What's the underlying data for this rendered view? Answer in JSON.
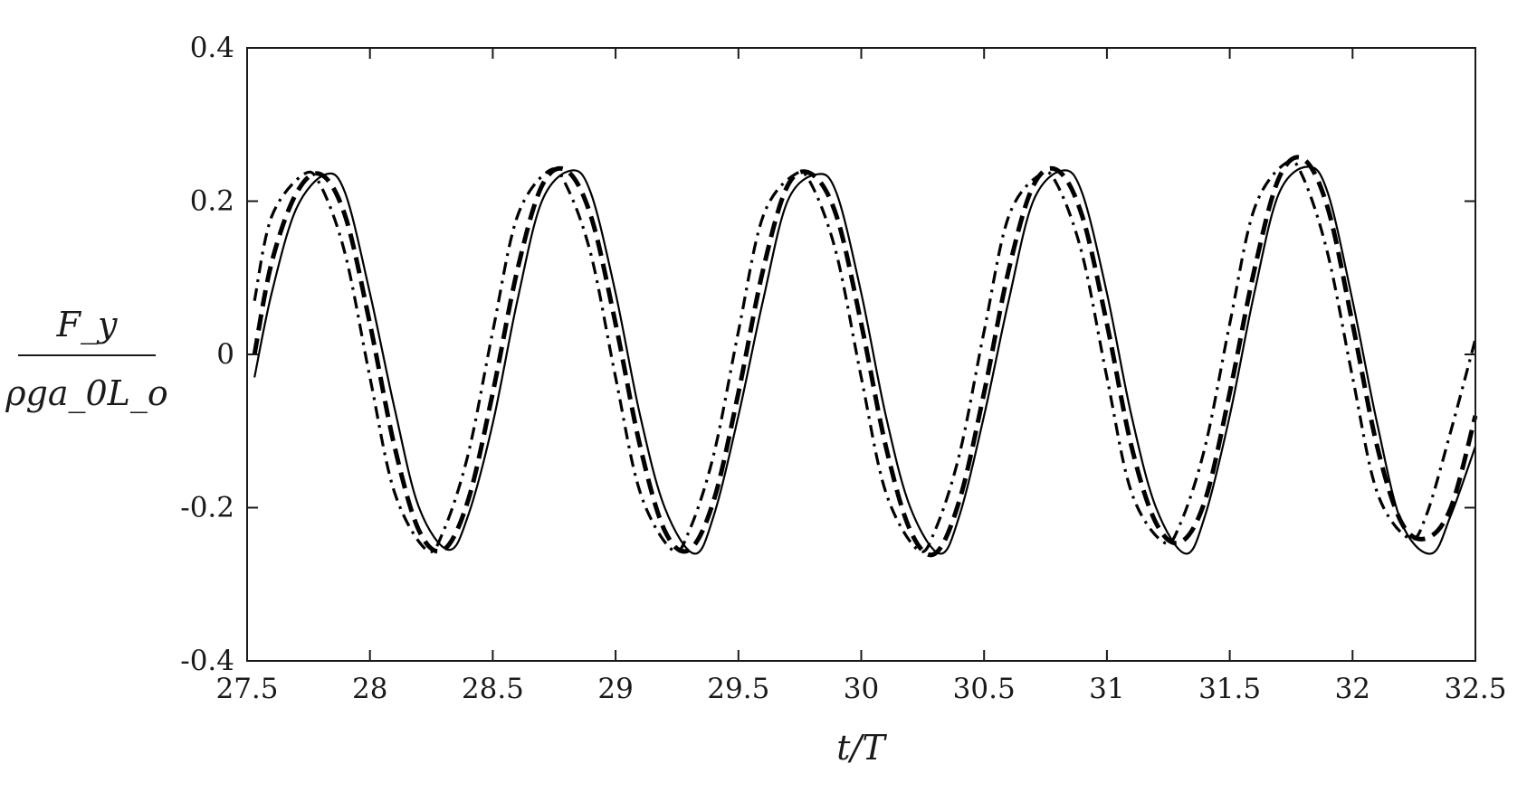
{
  "chart_data": {
    "type": "line",
    "title": "",
    "xlabel": "t/T",
    "ylabel_numerator": "F_y",
    "ylabel_denominator": "ρga_0L_o",
    "xlim": [
      27.5,
      32.5
    ],
    "ylim": [
      -0.4,
      0.4
    ],
    "xticks": [
      27.5,
      28,
      28.5,
      29,
      29.5,
      30,
      30.5,
      31,
      31.5,
      32,
      32.5
    ],
    "xtick_labels": [
      "27.5",
      "28",
      "28.5",
      "29",
      "29.5",
      "30",
      "30.5",
      "31",
      "31.5",
      "32",
      "32.5"
    ],
    "yticks": [
      -0.4,
      -0.2,
      0,
      0.2,
      0.4
    ],
    "ytick_labels": [
      "-0.4",
      "-0.2",
      "0",
      "0.2",
      "0.4"
    ],
    "grid": false,
    "line_color": "#000000",
    "series": [
      {
        "style": "solid",
        "x": [
          27.53,
          27.6,
          27.7,
          27.82,
          27.9,
          28.0,
          28.1,
          28.2,
          28.32,
          28.4,
          28.5,
          28.6,
          28.7,
          28.82,
          28.9,
          29.0,
          29.1,
          29.2,
          29.32,
          29.4,
          29.5,
          29.6,
          29.7,
          29.82,
          29.9,
          30.0,
          30.1,
          30.2,
          30.32,
          30.4,
          30.5,
          30.6,
          30.7,
          30.82,
          30.9,
          31.0,
          31.1,
          31.2,
          31.32,
          31.4,
          31.5,
          31.6,
          31.7,
          31.82,
          31.9,
          32.0,
          32.1,
          32.2,
          32.32,
          32.4,
          32.5
        ],
        "y": [
          -0.03,
          0.08,
          0.19,
          0.235,
          0.21,
          0.08,
          -0.07,
          -0.2,
          -0.255,
          -0.21,
          -0.09,
          0.07,
          0.2,
          0.24,
          0.21,
          0.08,
          -0.08,
          -0.2,
          -0.26,
          -0.21,
          -0.08,
          0.07,
          0.2,
          0.235,
          0.21,
          0.08,
          -0.08,
          -0.2,
          -0.26,
          -0.21,
          -0.08,
          0.07,
          0.2,
          0.24,
          0.21,
          0.08,
          -0.08,
          -0.2,
          -0.26,
          -0.21,
          -0.08,
          0.08,
          0.21,
          0.245,
          0.21,
          0.07,
          -0.09,
          -0.22,
          -0.26,
          -0.21,
          -0.12
        ]
      },
      {
        "style": "dashed",
        "x": [
          27.53,
          27.6,
          27.7,
          27.8,
          27.9,
          28.0,
          28.1,
          28.2,
          28.3,
          28.4,
          28.5,
          28.6,
          28.7,
          28.8,
          28.9,
          29.0,
          29.1,
          29.2,
          29.3,
          29.4,
          29.5,
          29.6,
          29.7,
          29.8,
          29.9,
          30.0,
          30.1,
          30.2,
          30.3,
          30.4,
          30.5,
          30.6,
          30.7,
          30.8,
          30.9,
          31.0,
          31.1,
          31.2,
          31.3,
          31.4,
          31.5,
          31.6,
          31.7,
          31.8,
          31.9,
          32.0,
          32.1,
          32.2,
          32.3,
          32.4,
          32.5
        ],
        "y": [
          0.0,
          0.12,
          0.21,
          0.235,
          0.18,
          0.04,
          -0.12,
          -0.23,
          -0.255,
          -0.19,
          -0.05,
          0.11,
          0.22,
          0.24,
          0.18,
          0.04,
          -0.12,
          -0.23,
          -0.255,
          -0.19,
          -0.05,
          0.11,
          0.22,
          0.235,
          0.18,
          0.04,
          -0.12,
          -0.23,
          -0.26,
          -0.19,
          -0.05,
          0.11,
          0.22,
          0.24,
          0.18,
          0.04,
          -0.12,
          -0.22,
          -0.245,
          -0.19,
          -0.05,
          0.11,
          0.23,
          0.255,
          0.19,
          0.04,
          -0.12,
          -0.22,
          -0.24,
          -0.2,
          -0.08
        ]
      },
      {
        "style": "dashdot",
        "x": [
          27.53,
          27.6,
          27.73,
          27.8,
          27.9,
          28.0,
          28.1,
          28.23,
          28.3,
          28.4,
          28.5,
          28.6,
          28.73,
          28.8,
          28.9,
          29.0,
          29.1,
          29.23,
          29.3,
          29.4,
          29.5,
          29.6,
          29.73,
          29.8,
          29.9,
          30.0,
          30.1,
          30.23,
          30.3,
          30.4,
          30.5,
          30.6,
          30.73,
          30.8,
          30.9,
          31.0,
          31.1,
          31.23,
          31.3,
          31.4,
          31.5,
          31.6,
          31.73,
          31.8,
          31.9,
          32.0,
          32.1,
          32.23,
          32.3,
          32.4,
          32.5
        ],
        "y": [
          0.07,
          0.18,
          0.235,
          0.22,
          0.13,
          -0.03,
          -0.18,
          -0.255,
          -0.23,
          -0.13,
          0.03,
          0.18,
          0.24,
          0.22,
          0.13,
          -0.03,
          -0.18,
          -0.255,
          -0.23,
          -0.13,
          0.03,
          0.18,
          0.235,
          0.22,
          0.13,
          -0.03,
          -0.18,
          -0.255,
          -0.23,
          -0.13,
          0.03,
          0.18,
          0.235,
          0.22,
          0.13,
          -0.03,
          -0.18,
          -0.245,
          -0.22,
          -0.12,
          0.04,
          0.19,
          0.25,
          0.23,
          0.13,
          -0.03,
          -0.18,
          -0.24,
          -0.21,
          -0.1,
          0.02
        ]
      }
    ]
  }
}
